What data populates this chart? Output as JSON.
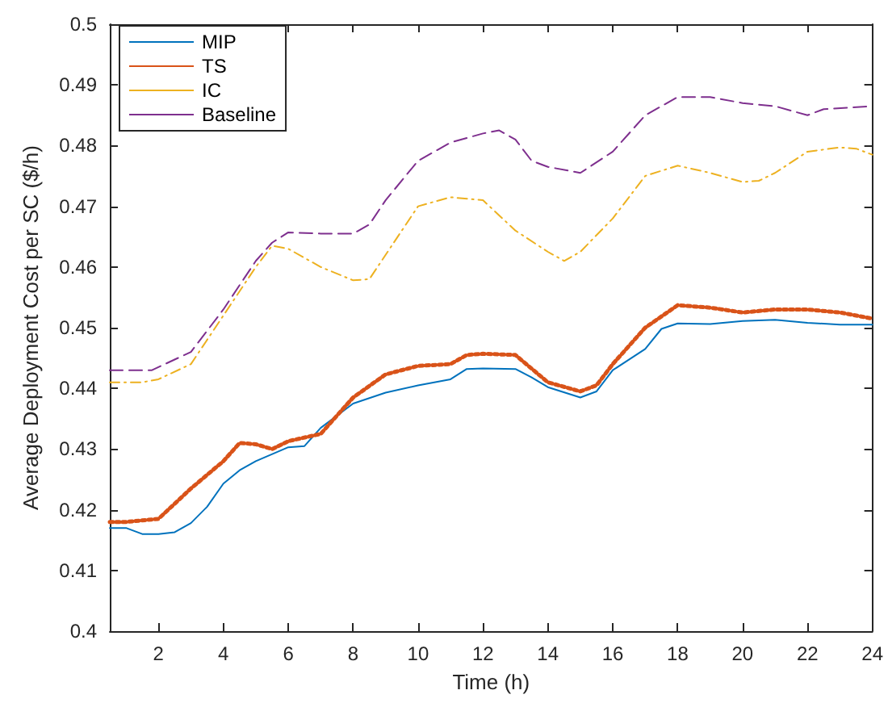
{
  "chart_data": {
    "type": "line",
    "xlabel": "Time (h)",
    "ylabel": "Average Deployment Cost per SC ($/h)",
    "xlim": [
      0.5,
      24
    ],
    "xticks": [
      2,
      4,
      6,
      8,
      10,
      12,
      14,
      16,
      18,
      20,
      22,
      24
    ],
    "ylim": [
      0.4,
      0.5
    ],
    "yticks": [
      0.4,
      0.41,
      0.42,
      0.43,
      0.44,
      0.45,
      0.46,
      0.47,
      0.48,
      0.49,
      0.5
    ],
    "grid": false,
    "legend": "top left",
    "marker": "none",
    "series": [
      {
        "name": "MIP",
        "color": "#0072bd",
        "line_style": "solid",
        "x": [
          0.5,
          1,
          1.5,
          2,
          2.5,
          3,
          3.5,
          4,
          4.5,
          5,
          6,
          6.5,
          7,
          8,
          9,
          10,
          11,
          11.5,
          12,
          13,
          13.5,
          14,
          15,
          15.5,
          16,
          17,
          17.5,
          18,
          19,
          20,
          21,
          22,
          23,
          24
        ],
        "values": [
          0.417,
          0.417,
          0.416,
          0.416,
          0.4163,
          0.4178,
          0.4205,
          0.4243,
          0.4265,
          0.428,
          0.4303,
          0.4305,
          0.4335,
          0.4375,
          0.4393,
          0.4405,
          0.4415,
          0.4432,
          0.4433,
          0.4432,
          0.4418,
          0.4402,
          0.4385,
          0.4395,
          0.443,
          0.4465,
          0.4498,
          0.4507,
          0.4506,
          0.4511,
          0.4513,
          0.4508,
          0.4505,
          0.4505
        ]
      },
      {
        "name": "TS",
        "color": "#d95319",
        "line_style": "dotted",
        "x": [
          0.5,
          1,
          2,
          3,
          4,
          4.5,
          5,
          5.5,
          6,
          7,
          8,
          9,
          10,
          11,
          11.5,
          12,
          13,
          14,
          15,
          15.5,
          16,
          17,
          18,
          19,
          20,
          21,
          22,
          23,
          24
        ],
        "values": [
          0.418,
          0.418,
          0.4185,
          0.4235,
          0.428,
          0.431,
          0.4308,
          0.43,
          0.4313,
          0.4325,
          0.4385,
          0.4423,
          0.4437,
          0.444,
          0.4455,
          0.4457,
          0.4455,
          0.441,
          0.4395,
          0.4405,
          0.444,
          0.45,
          0.4537,
          0.4533,
          0.4525,
          0.453,
          0.453,
          0.4525,
          0.4515
        ]
      },
      {
        "name": "IC",
        "color": "#edb120",
        "line_style": "dashdot",
        "x": [
          0.5,
          1.5,
          2,
          3,
          4,
          5,
          5.5,
          6,
          7,
          8,
          8.5,
          9,
          10,
          11,
          12,
          13,
          14,
          14.5,
          15,
          16,
          17,
          18,
          19,
          20,
          20.5,
          21,
          22,
          23,
          23.5,
          24
        ],
        "values": [
          0.441,
          0.441,
          0.4415,
          0.444,
          0.452,
          0.46,
          0.4635,
          0.463,
          0.46,
          0.4578,
          0.458,
          0.462,
          0.47,
          0.4715,
          0.471,
          0.466,
          0.4625,
          0.461,
          0.4625,
          0.468,
          0.475,
          0.4767,
          0.4755,
          0.474,
          0.4742,
          0.4755,
          0.479,
          0.4797,
          0.4795,
          0.4785
        ]
      },
      {
        "name": "Baseline",
        "color": "#7e2f8e",
        "line_style": "dashed",
        "x": [
          0.5,
          1.8,
          3,
          4,
          5,
          5.5,
          6,
          7,
          8,
          8.5,
          9,
          10,
          11,
          12,
          12.5,
          13,
          13.5,
          14,
          15,
          16,
          17,
          18,
          19,
          20,
          21,
          22,
          22.5,
          24
        ],
        "values": [
          0.443,
          0.443,
          0.446,
          0.453,
          0.461,
          0.464,
          0.4657,
          0.4655,
          0.4655,
          0.467,
          0.471,
          0.4775,
          0.4805,
          0.482,
          0.4825,
          0.481,
          0.4775,
          0.4765,
          0.4755,
          0.479,
          0.485,
          0.488,
          0.488,
          0.487,
          0.4865,
          0.485,
          0.486,
          0.4865
        ]
      }
    ]
  }
}
